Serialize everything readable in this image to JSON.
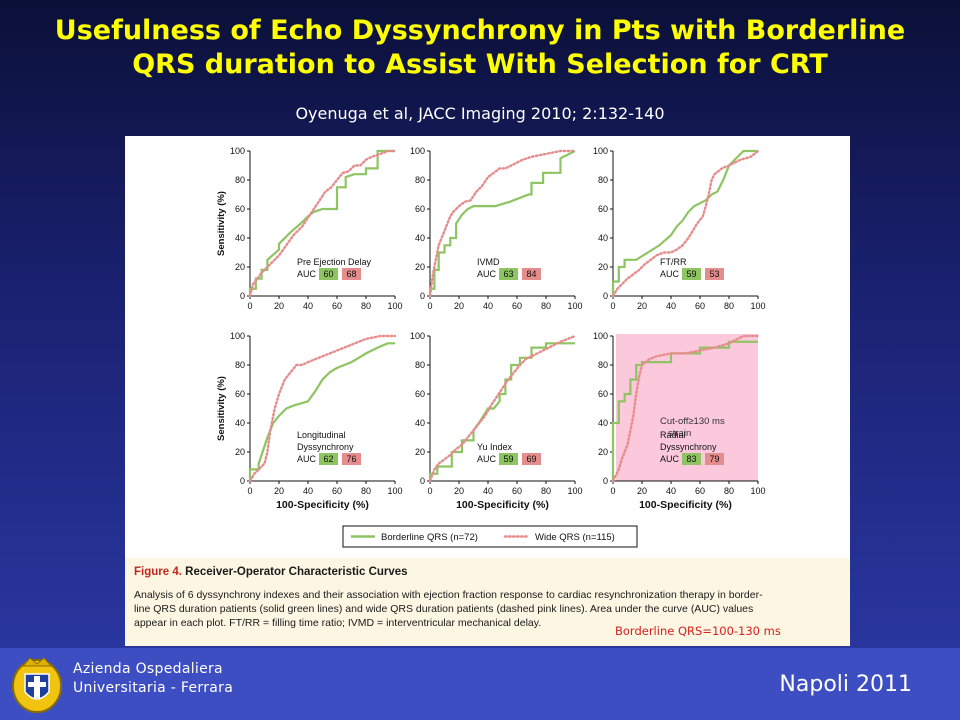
{
  "slide": {
    "title_line1": "Usefulness of Echo Dyssynchrony in Pts with Borderline",
    "title_line2": "QRS duration to Assist With Selection for CRT",
    "citation": "Oyenuga et al, JACC Imaging 2010; 2:132-140"
  },
  "colors": {
    "borderline": "#8ec462",
    "wide": "#e58d8d",
    "highlight": "#fbc8dc"
  },
  "chart_data": [
    {
      "type": "line",
      "name": "Pre Ejection Delay",
      "ylabel": "Sensitivity (%)",
      "xlabel": "",
      "xlim": [
        0,
        100
      ],
      "ylim": [
        0,
        100
      ],
      "auc_label": "AUC",
      "auc": {
        "borderline": "60",
        "wide": "68"
      },
      "label_lines": [
        "Pre Ejection Delay"
      ],
      "series": [
        {
          "name": "Borderline QRS (n=72)",
          "x": [
            0,
            0,
            4,
            4,
            8,
            8,
            12,
            12,
            20,
            20,
            28,
            35,
            40,
            44,
            50,
            60,
            60,
            66,
            66,
            72,
            80,
            80,
            88,
            88,
            100
          ],
          "y": [
            0,
            5,
            5,
            12,
            12,
            18,
            18,
            25,
            32,
            36,
            44,
            50,
            55,
            58,
            60,
            60,
            75,
            75,
            82,
            84,
            84,
            88,
            88,
            100,
            100
          ]
        },
        {
          "name": "Wide QRS (n=115)",
          "x": [
            0,
            2,
            5,
            8,
            12,
            16,
            20,
            25,
            30,
            36,
            40,
            44,
            48,
            52,
            56,
            60,
            64,
            68,
            72,
            76,
            80,
            84,
            90,
            95,
            100
          ],
          "y": [
            0,
            8,
            12,
            16,
            20,
            24,
            28,
            35,
            42,
            48,
            54,
            60,
            66,
            72,
            75,
            80,
            85,
            86,
            90,
            90,
            94,
            96,
            98,
            100,
            100
          ]
        }
      ]
    },
    {
      "type": "line",
      "name": "IVMD",
      "ylabel": "",
      "xlabel": "",
      "xlim": [
        0,
        100
      ],
      "ylim": [
        0,
        100
      ],
      "auc_label": "AUC",
      "auc": {
        "borderline": "63",
        "wide": "84"
      },
      "label_lines": [
        "IVMD"
      ],
      "series": [
        {
          "name": "Borderline QRS (n=72)",
          "x": [
            0,
            0,
            3,
            3,
            6,
            6,
            10,
            10,
            14,
            14,
            18,
            18,
            22,
            26,
            30,
            45,
            55,
            68,
            70,
            70,
            78,
            78,
            90,
            90,
            100
          ],
          "y": [
            0,
            5,
            5,
            18,
            18,
            30,
            30,
            35,
            35,
            40,
            40,
            50,
            56,
            60,
            62,
            62,
            65,
            70,
            70,
            78,
            78,
            85,
            85,
            95,
            100
          ]
        },
        {
          "name": "Wide QRS (n=115)",
          "x": [
            0,
            2,
            4,
            6,
            8,
            10,
            12,
            14,
            16,
            18,
            20,
            24,
            28,
            32,
            36,
            40,
            44,
            48,
            52,
            56,
            60,
            64,
            70,
            80,
            90,
            100
          ],
          "y": [
            0,
            15,
            25,
            35,
            40,
            45,
            50,
            55,
            58,
            60,
            62,
            65,
            66,
            72,
            76,
            82,
            85,
            88,
            88,
            90,
            92,
            94,
            96,
            98,
            100,
            100
          ]
        }
      ]
    },
    {
      "type": "line",
      "name": "FT/RR",
      "ylabel": "",
      "xlabel": "",
      "xlim": [
        0,
        100
      ],
      "ylim": [
        0,
        100
      ],
      "auc_label": "AUC",
      "auc": {
        "borderline": "59",
        "wide": "53"
      },
      "label_lines": [
        "FT/RR"
      ],
      "series": [
        {
          "name": "Borderline QRS (n=72)",
          "x": [
            0,
            0,
            4,
            4,
            8,
            8,
            16,
            24,
            32,
            40,
            44,
            48,
            52,
            56,
            60,
            64,
            68,
            72,
            76,
            80,
            90,
            100
          ],
          "y": [
            0,
            10,
            10,
            20,
            20,
            25,
            25,
            30,
            35,
            42,
            48,
            52,
            58,
            62,
            64,
            66,
            70,
            72,
            80,
            90,
            100,
            100
          ]
        },
        {
          "name": "Wide QRS (n=115)",
          "x": [
            0,
            3,
            6,
            10,
            14,
            18,
            22,
            26,
            30,
            35,
            40,
            44,
            48,
            52,
            55,
            58,
            62,
            64,
            66,
            68,
            70,
            75,
            80,
            88,
            95,
            100
          ],
          "y": [
            0,
            5,
            8,
            12,
            15,
            18,
            22,
            25,
            28,
            30,
            30,
            32,
            35,
            40,
            45,
            50,
            55,
            62,
            70,
            80,
            84,
            88,
            90,
            94,
            96,
            100
          ]
        }
      ]
    },
    {
      "type": "line",
      "name": "Longitudinal Dyssynchrony",
      "ylabel": "Sensitivity (%)",
      "xlabel": "100-Specificity (%)",
      "xlim": [
        0,
        100
      ],
      "ylim": [
        0,
        100
      ],
      "auc_label": "AUC",
      "auc": {
        "borderline": "62",
        "wide": "76"
      },
      "label_lines": [
        "Longitudinal",
        "Dyssynchrony"
      ],
      "series": [
        {
          "name": "Borderline QRS (n=72)",
          "x": [
            0,
            0,
            6,
            6,
            12,
            14,
            16,
            20,
            25,
            30,
            40,
            45,
            50,
            55,
            60,
            70,
            75,
            80,
            88,
            95,
            100
          ],
          "y": [
            0,
            8,
            8,
            12,
            30,
            35,
            40,
            45,
            50,
            52,
            55,
            62,
            70,
            75,
            78,
            82,
            85,
            88,
            92,
            95,
            95
          ]
        },
        {
          "name": "Wide QRS (n=115)",
          "x": [
            0,
            3,
            6,
            10,
            12,
            14,
            17,
            20,
            24,
            28,
            32,
            36,
            40,
            45,
            50,
            55,
            60,
            65,
            70,
            75,
            80,
            90,
            100
          ],
          "y": [
            0,
            5,
            8,
            12,
            20,
            35,
            50,
            60,
            70,
            75,
            80,
            80,
            82,
            84,
            86,
            88,
            90,
            92,
            94,
            96,
            98,
            100,
            100
          ]
        }
      ]
    },
    {
      "type": "line",
      "name": "Yu Index",
      "ylabel": "",
      "xlabel": "100-Specificity (%)",
      "xlim": [
        0,
        100
      ],
      "ylim": [
        0,
        100
      ],
      "auc_label": "AUC",
      "auc": {
        "borderline": "59",
        "wide": "69"
      },
      "label_lines": [
        "Yu Index"
      ],
      "series": [
        {
          "name": "Borderline QRS (n=72)",
          "x": [
            0,
            0,
            5,
            5,
            15,
            15,
            22,
            22,
            30,
            30,
            35,
            40,
            44,
            48,
            48,
            52,
            52,
            56,
            56,
            62,
            62,
            70,
            70,
            80,
            80,
            100
          ],
          "y": [
            0,
            5,
            5,
            10,
            10,
            20,
            20,
            28,
            28,
            35,
            42,
            50,
            50,
            55,
            60,
            60,
            70,
            70,
            80,
            80,
            85,
            85,
            92,
            92,
            95,
            95
          ]
        },
        {
          "name": "Wide QRS (n=115)",
          "x": [
            0,
            3,
            6,
            10,
            14,
            18,
            22,
            26,
            30,
            34,
            38,
            42,
            46,
            50,
            54,
            58,
            62,
            66,
            70,
            74,
            78,
            82,
            86,
            90,
            95,
            100
          ],
          "y": [
            0,
            8,
            12,
            15,
            18,
            22,
            25,
            30,
            35,
            40,
            45,
            52,
            58,
            64,
            70,
            75,
            80,
            84,
            86,
            88,
            90,
            92,
            94,
            96,
            98,
            100
          ]
        }
      ]
    },
    {
      "type": "line",
      "name": "Radial Dyssynchrony",
      "ylabel": "",
      "xlabel": "100-Specificity (%)",
      "xlim": [
        0,
        100
      ],
      "ylim": [
        0,
        100
      ],
      "auc_label": "AUC",
      "auc": {
        "borderline": "83",
        "wide": "79"
      },
      "label_lines": [
        "Radial",
        "Dyssynchrony"
      ],
      "overlay_lines": [
        "Cut-off≥130 ms",
        "strain"
      ],
      "series": [
        {
          "name": "Borderline QRS (n=72)",
          "x": [
            0,
            0,
            4,
            4,
            8,
            8,
            12,
            12,
            16,
            16,
            20,
            20,
            40,
            40,
            60,
            60,
            80,
            80,
            100
          ],
          "y": [
            0,
            40,
            40,
            55,
            55,
            60,
            60,
            70,
            70,
            80,
            80,
            82,
            82,
            88,
            88,
            92,
            92,
            96,
            96
          ]
        },
        {
          "name": "Wide QRS (n=115)",
          "x": [
            0,
            4,
            6,
            8,
            10,
            12,
            14,
            16,
            18,
            20,
            25,
            30,
            40,
            50,
            60,
            70,
            80,
            90,
            100
          ],
          "y": [
            0,
            8,
            15,
            20,
            25,
            35,
            45,
            60,
            72,
            80,
            84,
            86,
            88,
            88,
            90,
            92,
            95,
            100,
            100
          ]
        }
      ]
    }
  ],
  "legend": {
    "borderline": "Borderline QRS (n=72)",
    "wide": "Wide QRS (n=115)"
  },
  "caption": {
    "figure_label": "Figure 4.",
    "figure_title": "Receiver-Operator Characteristic Curves",
    "line1": "Analysis of 6 dyssynchrony indexes and their association with ejection fraction response to cardiac resynchronization therapy in border-",
    "line2": "line QRS duration patients (solid green lines) and wide QRS duration patients (dashed pink lines). Area under the curve (AUC) values",
    "line3": "appear in each plot. FT/RR = filling time ratio; IVMD = interventricular mechanical delay.",
    "note": "Borderline QRS=100-130 ms"
  },
  "footer": {
    "org_line1": "Azienda Ospedaliera",
    "org_line2": "Universitaria - Ferrara",
    "city": "Napoli  2011"
  }
}
